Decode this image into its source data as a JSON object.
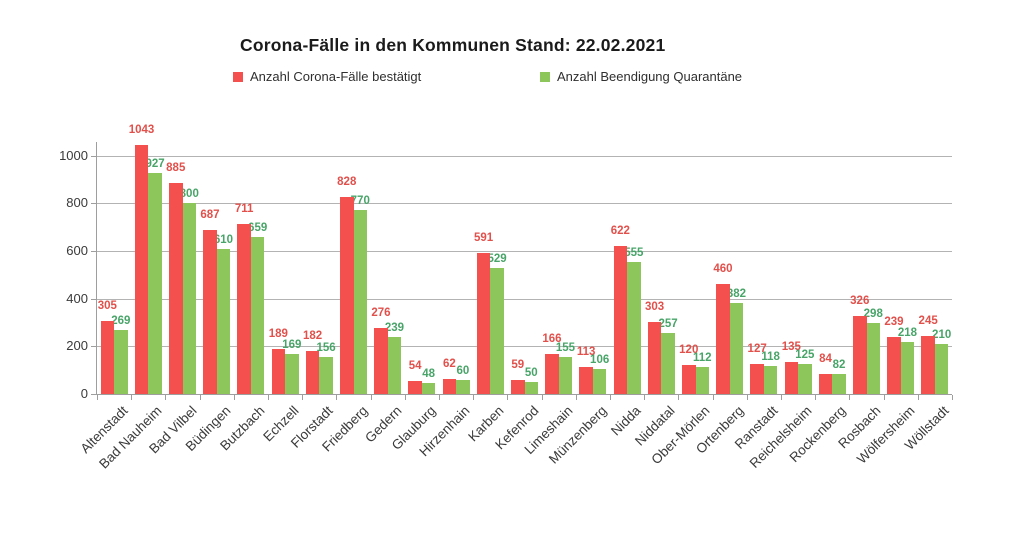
{
  "chart_data": {
    "type": "bar",
    "title": "Corona-Fälle in den Kommunen Stand: 22.02.2021",
    "categories": [
      "Altenstadt",
      "Bad Nauheim",
      "Bad Vilbel",
      "Büdingen",
      "Butzbach",
      "Echzell",
      "Florstadt",
      "Friedberg",
      "Gedern",
      "Glauburg",
      "Hirzenhain",
      "Karben",
      "Kefenrod",
      "Limeshain",
      "Münzenberg",
      "Nidda",
      "Niddatal",
      "Ober-Mörlen",
      "Ortenberg",
      "Ranstadt",
      "Reichelsheim",
      "Rockenberg",
      "Rosbach",
      "Wölfersheim",
      "Wöllstadt"
    ],
    "series": [
      {
        "name": "Anzahl Corona-Fälle bestätigt",
        "color": "#f4514e",
        "label_color": "#e2504b",
        "values": [
          305,
          1043,
          885,
          687,
          711,
          189,
          182,
          828,
          276,
          54,
          62,
          591,
          59,
          166,
          113,
          622,
          303,
          120,
          460,
          127,
          135,
          84,
          326,
          239,
          245
        ]
      },
      {
        "name": "Anzahl Beendigung Quarantäne",
        "color": "#8dc75b",
        "label_color": "#48a468",
        "values": [
          269,
          927,
          800,
          610,
          659,
          169,
          156,
          770,
          239,
          48,
          60,
          529,
          50,
          155,
          106,
          555,
          257,
          112,
          382,
          118,
          125,
          82,
          298,
          218,
          210
        ]
      }
    ],
    "xlabel": "",
    "ylabel": "",
    "ylim": [
      0,
      1000
    ],
    "yticks": [
      0,
      200,
      400,
      600,
      800,
      1000
    ],
    "grid": true,
    "legend_position": "top",
    "bar_labels": true,
    "axis_color": "#9e9e9e",
    "grid_color": "#b3b3b3",
    "tick_label_color": "#3a3a3a"
  }
}
